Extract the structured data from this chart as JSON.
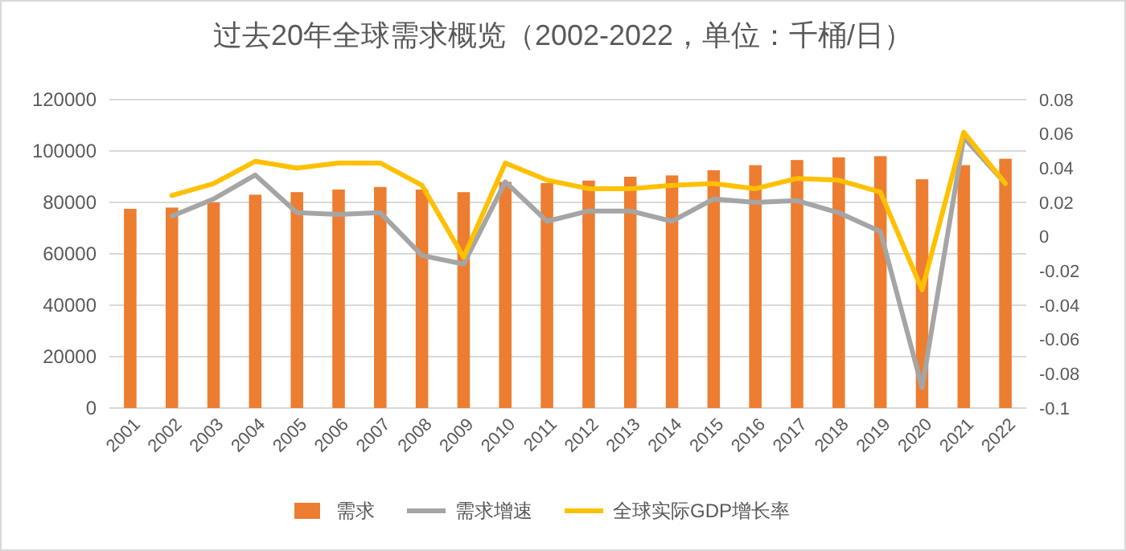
{
  "chart_data": {
    "type": "bar",
    "title": "过去20年全球需求概览（2002-2022，单位：千桶/日）",
    "categories": [
      "2001",
      "2002",
      "2003",
      "2004",
      "2005",
      "2006",
      "2007",
      "2008",
      "2009",
      "2010",
      "2011",
      "2012",
      "2013",
      "2014",
      "2015",
      "2016",
      "2017",
      "2018",
      "2019",
      "2020",
      "2021",
      "2022"
    ],
    "series": [
      {
        "name": "需求",
        "color": "#ed7d31",
        "values": [
          77500,
          78000,
          80000,
          83000,
          84000,
          85000,
          86000,
          85000,
          84000,
          88000,
          87500,
          88500,
          90000,
          90500,
          92500,
          94500,
          96500,
          97500,
          98000,
          89000,
          94500,
          97000
        ]
      },
      {
        "name": "需求增速",
        "type": "line",
        "axis": "y2",
        "color": "#a5a5a5",
        "values": [
          null,
          0.012,
          0.022,
          0.036,
          0.014,
          0.013,
          0.014,
          -0.011,
          -0.016,
          0.032,
          0.009,
          0.015,
          0.015,
          0.009,
          0.022,
          0.02,
          0.021,
          0.014,
          0.003,
          -0.088,
          0.058,
          0.031
        ]
      },
      {
        "name": "全球实际GDP增长率",
        "type": "line",
        "axis": "y2",
        "color": "#ffc000",
        "values": [
          null,
          0.024,
          0.031,
          0.044,
          0.04,
          0.043,
          0.043,
          0.03,
          -0.012,
          0.043,
          0.033,
          0.028,
          0.028,
          0.03,
          0.031,
          0.028,
          0.034,
          0.033,
          0.026,
          -0.031,
          0.061,
          0.031
        ]
      }
    ],
    "ylim": [
      0,
      120000
    ],
    "yticks": [
      0,
      20000,
      40000,
      60000,
      80000,
      100000,
      120000
    ],
    "y2lim": [
      -0.1,
      0.08
    ],
    "y2ticks": [
      {
        "value": -0.1,
        "label": "-0.1"
      },
      {
        "value": -0.08,
        "label": "-0.08"
      },
      {
        "value": -0.06,
        "label": "-0.06"
      },
      {
        "value": -0.04,
        "label": "-0.04"
      },
      {
        "value": -0.02,
        "label": "-0.02"
      },
      {
        "value": 0,
        "label": "0"
      },
      {
        "value": 0.02,
        "label": "0.02"
      },
      {
        "value": 0.04,
        "label": "0.04"
      },
      {
        "value": 0.06,
        "label": "0.06"
      },
      {
        "value": 0.08,
        "label": "0.08"
      }
    ],
    "grid": "y",
    "legend": "bottom",
    "line_style": "solid",
    "marker": "none"
  }
}
